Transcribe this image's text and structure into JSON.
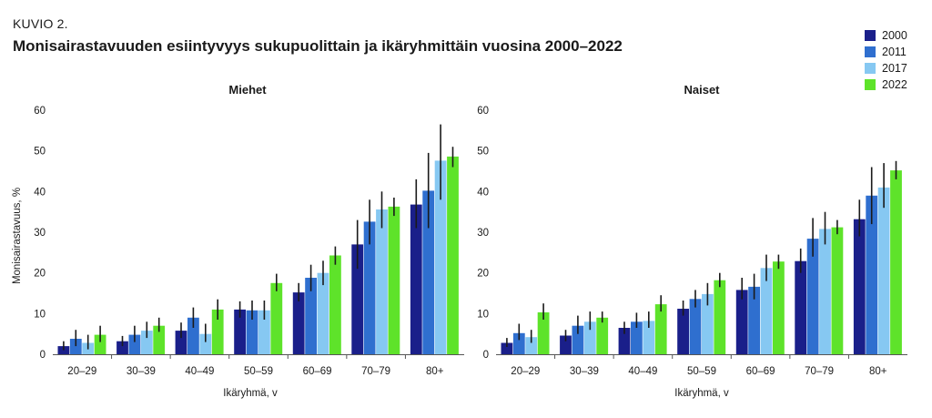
{
  "header": {
    "label": "KUVIO 2.",
    "title": "Monisairastavuuden esiintyvyys sukupuolittain ja ikäryhmittäin vuosina 2000–2022"
  },
  "legend": [
    {
      "name": "2000",
      "color": "#1a1f8a"
    },
    {
      "name": "2011",
      "color": "#2f6fcf"
    },
    {
      "name": "2017",
      "color": "#86c8f2"
    },
    {
      "name": "2022",
      "color": "#5ee32a"
    }
  ],
  "chart_data": [
    {
      "type": "bar",
      "title": "Miehet",
      "xlabel": "Ikäryhmä, v",
      "ylabel": "Monisairastavuus, %",
      "ylim": [
        0,
        60
      ],
      "yticks": [
        0,
        10,
        20,
        30,
        40,
        50,
        60
      ],
      "categories": [
        "20–29",
        "30–39",
        "40–49",
        "50–59",
        "60–69",
        "70–79",
        "80+"
      ],
      "series": [
        {
          "name": "2000",
          "values": [
            2,
            3.2,
            5.8,
            11,
            15.2,
            27,
            36.8
          ],
          "ci": [
            [
              1,
              3.2
            ],
            [
              2,
              4.5
            ],
            [
              4,
              7.8
            ],
            [
              9,
              13
            ],
            [
              13,
              17.5
            ],
            [
              21,
              33
            ],
            [
              31,
              43
            ]
          ]
        },
        {
          "name": "2011",
          "values": [
            3.8,
            4.8,
            9,
            10.8,
            18.8,
            32.6,
            40.2
          ],
          "ci": [
            [
              2,
              6
            ],
            [
              3,
              7
            ],
            [
              6.5,
              11.5
            ],
            [
              8.5,
              13.2
            ],
            [
              15.5,
              22
            ],
            [
              27,
              38
            ],
            [
              31,
              49.5
            ]
          ]
        },
        {
          "name": "2017",
          "values": [
            2.8,
            5.8,
            5,
            10.8,
            20,
            35.6,
            47.6
          ],
          "ci": [
            [
              1.2,
              4.8
            ],
            [
              4,
              8
            ],
            [
              3,
              7.5
            ],
            [
              8.5,
              13.2
            ],
            [
              17,
              23
            ],
            [
              31,
              40
            ],
            [
              38,
              56.5
            ]
          ]
        },
        {
          "name": "2022",
          "values": [
            4.8,
            7,
            11,
            17.5,
            24.3,
            36.3,
            48.6
          ],
          "ci": [
            [
              3,
              7
            ],
            [
              5.5,
              9
            ],
            [
              8.5,
              13.5
            ],
            [
              15.5,
              19.8
            ],
            [
              22,
              26.5
            ],
            [
              34,
              38.5
            ],
            [
              46,
              51
            ]
          ]
        }
      ]
    },
    {
      "type": "bar",
      "title": "Naiset",
      "xlabel": "Ikäryhmä, v",
      "ylabel": "",
      "ylim": [
        0,
        60
      ],
      "yticks": [
        0,
        10,
        20,
        30,
        40,
        50,
        60
      ],
      "categories": [
        "20–29",
        "30–39",
        "40–49",
        "50–59",
        "60–69",
        "70–79",
        "80+"
      ],
      "series": [
        {
          "name": "2000",
          "values": [
            2.8,
            4.6,
            6.5,
            11.2,
            15.8,
            22.9,
            33.2
          ],
          "ci": [
            [
              1.8,
              4
            ],
            [
              3.2,
              6
            ],
            [
              5,
              8
            ],
            [
              9.5,
              13.2
            ],
            [
              13.5,
              18.8
            ],
            [
              20,
              26
            ],
            [
              29,
              38
            ]
          ]
        },
        {
          "name": "2011",
          "values": [
            5.2,
            7,
            8,
            13.6,
            16.6,
            28.4,
            39
          ],
          "ci": [
            [
              3.5,
              7.5
            ],
            [
              5,
              9.5
            ],
            [
              6.5,
              10.2
            ],
            [
              11.5,
              15.8
            ],
            [
              13.5,
              19.8
            ],
            [
              24,
              33.5
            ],
            [
              32,
              46
            ]
          ]
        },
        {
          "name": "2017",
          "values": [
            4.2,
            8,
            8.2,
            14.8,
            21.2,
            30.8,
            41
          ],
          "ci": [
            [
              2.8,
              6
            ],
            [
              6,
              10.5
            ],
            [
              6.5,
              10.5
            ],
            [
              12,
              17.5
            ],
            [
              18,
              24.5
            ],
            [
              27,
              35
            ],
            [
              36,
              47
            ]
          ]
        },
        {
          "name": "2022",
          "values": [
            10.3,
            9,
            12.3,
            18.2,
            22.8,
            31.2,
            45.2
          ],
          "ci": [
            [
              8.5,
              12.5
            ],
            [
              7.8,
              10.5
            ],
            [
              10.5,
              14.5
            ],
            [
              16.5,
              20
            ],
            [
              21,
              24.5
            ],
            [
              29.5,
              33
            ],
            [
              43,
              47.5
            ]
          ]
        }
      ]
    }
  ]
}
